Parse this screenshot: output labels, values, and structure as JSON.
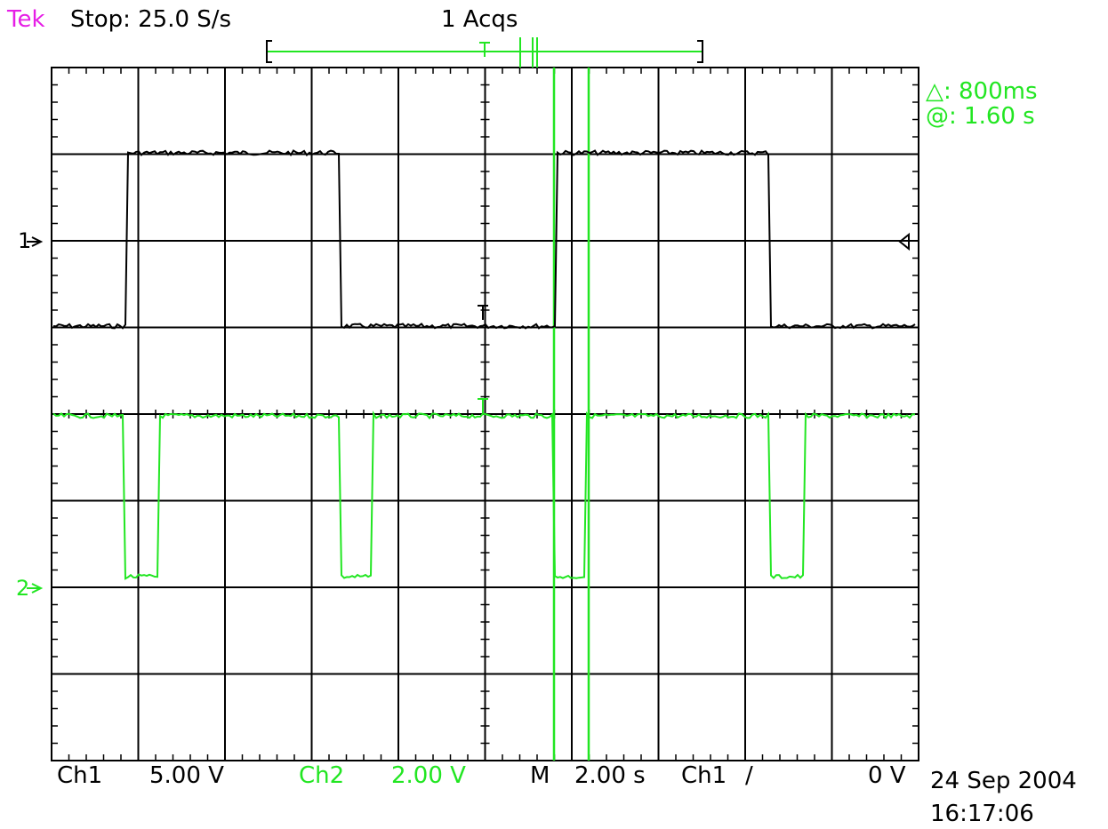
{
  "header": {
    "brand": "Tek",
    "status": "Stop: 25.0 S/s",
    "acquisitions": "1 Acqs"
  },
  "cursor_readout": {
    "delta": "△: 800ms",
    "at": "@: 1.60 s"
  },
  "channel_markers": {
    "ch1": "1",
    "ch2": "2"
  },
  "footer": {
    "ch1_label": "Ch1",
    "ch1_scale": "5.00 V",
    "ch2_label": "Ch2",
    "ch2_scale": "2.00 V",
    "timebase_label": "M",
    "timebase": "2.00 s",
    "trigger_source": "Ch1",
    "trigger_slope": "∕",
    "trigger_level": "0 V",
    "date": "24 Sep 2004",
    "time": "16:17:06"
  },
  "colors": {
    "ch1": "#000000",
    "ch2": "#22e622",
    "brand": "#e61ee6",
    "cursor": "#22e622"
  }
}
